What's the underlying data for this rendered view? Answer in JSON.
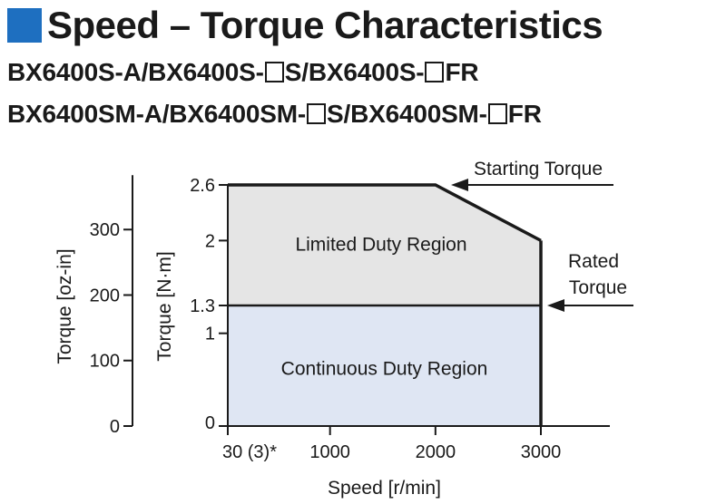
{
  "title": "Speed – Torque Characteristics",
  "accent_color": "#1e6fc0",
  "models": [
    [
      "BX6400S-A/BX6400S-",
      "S/BX6400S-",
      "FR"
    ],
    [
      "BX6400SM-A/BX6400SM-",
      "S/BX6400SM-",
      "FR"
    ]
  ],
  "chart_data": {
    "type": "area",
    "xlabel": "Speed [r/min]",
    "ylabel": "Torque [N·m]",
    "ylabel_secondary": "Torque [oz-in]",
    "x_ticks": [
      {
        "value": 30,
        "label": "30 (3)*"
      },
      {
        "value": 1000,
        "label": "1000"
      },
      {
        "value": 2000,
        "label": "2000"
      },
      {
        "value": 3000,
        "label": "3000"
      }
    ],
    "y_ticks": [
      {
        "value": 0,
        "label": "0"
      },
      {
        "value": 1,
        "label": "1"
      },
      {
        "value": 1.3,
        "label": "1.3"
      },
      {
        "value": 2,
        "label": "2"
      },
      {
        "value": 2.6,
        "label": "2.6"
      }
    ],
    "y_secondary_ticks": [
      {
        "value": 0,
        "label": "0"
      },
      {
        "value": 100,
        "label": "100"
      },
      {
        "value": 200,
        "label": "200"
      },
      {
        "value": 300,
        "label": "300"
      }
    ],
    "xlim": [
      30,
      3000
    ],
    "ylim": [
      0,
      2.6
    ],
    "series": [
      {
        "name": "Starting Torque",
        "x": [
          30,
          2000,
          3000
        ],
        "y": [
          2.6,
          2.6,
          2.0
        ]
      },
      {
        "name": "Rated Torque",
        "x": [
          30,
          3000
        ],
        "y": [
          1.3,
          1.3
        ]
      }
    ],
    "regions": [
      {
        "label": "Limited Duty Region",
        "color": "#e5e5e5"
      },
      {
        "label": "Continuous Duty Region",
        "color": "#dfe6f3"
      }
    ],
    "annotations": [
      {
        "text": "Starting Torque",
        "lines": [
          "Starting Torque"
        ]
      },
      {
        "text": "Rated Torque",
        "lines": [
          "Rated",
          "Torque"
        ]
      }
    ]
  }
}
